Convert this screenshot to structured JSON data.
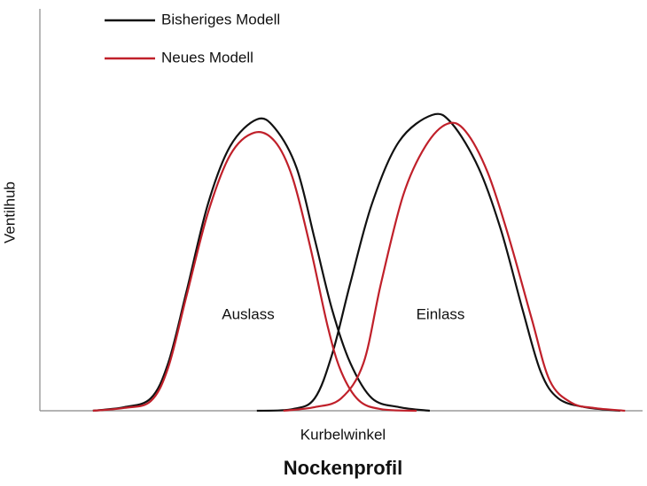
{
  "chart_data": {
    "type": "line",
    "title": "Nockenprofil",
    "x_label": "Kurbelwinkel",
    "y_label": "Ventilhub",
    "annotations": [
      "Auslass",
      "Einlass"
    ],
    "xlim": [
      0,
      100
    ],
    "ylim": [
      0,
      100
    ],
    "legend": "top-left",
    "grid": false,
    "series": [
      {
        "name": "Bisheriges Modell",
        "color": "#111111",
        "x": [
          8.8,
          14.0,
          18.4,
          21.3,
          24.3,
          27.9,
          31.6,
          36.0,
          39.0,
          42.6,
          45.6,
          48.5,
          51.5,
          55.1,
          59.6,
          64.7,
          null,
          36.0,
          41.9,
          45.6,
          48.5,
          51.5,
          55.1,
          59.6,
          65.1,
          68.4,
          72.8,
          76.5,
          80.1,
          83.1,
          86.0,
          90.4,
          96.3
        ],
        "values": [
          0,
          0.9,
          3.1,
          11.9,
          29.5,
          51.5,
          65.9,
          72.5,
          70.3,
          60.4,
          42.7,
          25.1,
          11.9,
          3.1,
          0.9,
          0,
          null,
          0,
          0.4,
          3.1,
          14.1,
          31.7,
          51.5,
          67.0,
          73.6,
          71.4,
          60.4,
          45.0,
          25.1,
          9.7,
          3.1,
          0.9,
          0
        ]
      },
      {
        "name": "Neues Modell",
        "color": "#c0202a",
        "x": [
          8.8,
          14.0,
          18.4,
          21.3,
          24.3,
          27.9,
          31.6,
          35.6,
          39.0,
          41.9,
          44.9,
          47.8,
          50.0,
          52.9,
          56.6,
          62.5,
          null,
          40.4,
          45.6,
          50.0,
          53.7,
          56.6,
          60.3,
          64.0,
          67.6,
          70.6,
          74.3,
          77.9,
          81.6,
          84.6,
          88.2,
          91.9,
          97.1
        ],
        "values": [
          0,
          0.7,
          2.4,
          10.8,
          28.4,
          49.3,
          63.7,
          69.2,
          67.0,
          58.1,
          40.5,
          20.7,
          9.7,
          2.6,
          0.4,
          0,
          null,
          0,
          0.9,
          3.1,
          11.9,
          31.7,
          53.7,
          65.9,
          71.4,
          69.6,
          59.3,
          42.7,
          22.9,
          7.5,
          2.0,
          0.7,
          0
        ]
      }
    ]
  }
}
